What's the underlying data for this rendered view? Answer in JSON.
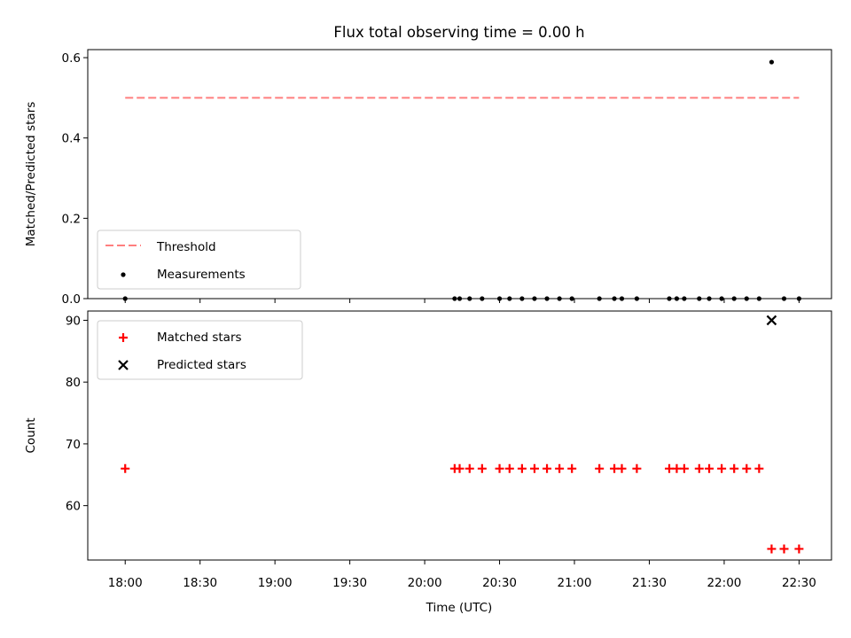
{
  "figure": {
    "title": "Flux total observing time = 0.00 h",
    "xlabel": "Time (UTC)"
  },
  "chart_data": [
    {
      "type": "scatter",
      "title": "Flux total observing time = 0.00 h",
      "xlabel": "",
      "ylabel": "Matched/Predicted stars",
      "xlim": [
        "17:45",
        "22:43"
      ],
      "ylim": [
        0.0,
        0.62
      ],
      "yticks": [
        0.0,
        0.2,
        0.4,
        0.6
      ],
      "grid": false,
      "legend_position": "lower-left",
      "threshold": {
        "name": "Threshold",
        "value": 0.5,
        "x_start": "18:00",
        "x_end": "22:30",
        "color": "#ff7f7f",
        "style": "dashed"
      },
      "series": [
        {
          "name": "Measurements",
          "color": "#000000",
          "marker": "dot",
          "points": [
            [
              "18:00",
              0.0
            ],
            [
              "20:12",
              0.0
            ],
            [
              "20:14",
              0.0
            ],
            [
              "20:18",
              0.0
            ],
            [
              "20:23",
              0.0
            ],
            [
              "20:30",
              0.0
            ],
            [
              "20:34",
              0.0
            ],
            [
              "20:39",
              0.0
            ],
            [
              "20:44",
              0.0
            ],
            [
              "20:49",
              0.0
            ],
            [
              "20:54",
              0.0
            ],
            [
              "20:59",
              0.0
            ],
            [
              "21:10",
              0.0
            ],
            [
              "21:16",
              0.0
            ],
            [
              "21:19",
              0.0
            ],
            [
              "21:25",
              0.0
            ],
            [
              "21:38",
              0.0
            ],
            [
              "21:41",
              0.0
            ],
            [
              "21:44",
              0.0
            ],
            [
              "21:50",
              0.0
            ],
            [
              "21:54",
              0.0
            ],
            [
              "21:59",
              0.0
            ],
            [
              "22:04",
              0.0
            ],
            [
              "22:09",
              0.0
            ],
            [
              "22:14",
              0.0
            ],
            [
              "22:19",
              0.589
            ],
            [
              "22:24",
              0.0
            ],
            [
              "22:30",
              0.0
            ]
          ]
        }
      ]
    },
    {
      "type": "scatter",
      "xlabel": "Time (UTC)",
      "ylabel": "Count",
      "xlim": [
        "17:45",
        "22:43"
      ],
      "ylim": [
        51.2,
        91.5
      ],
      "yticks": [
        60,
        70,
        80,
        90
      ],
      "xticks": [
        "18:00",
        "18:30",
        "19:00",
        "19:30",
        "20:00",
        "20:30",
        "21:00",
        "21:30",
        "22:00",
        "22:30"
      ],
      "grid": false,
      "legend_position": "upper-left",
      "series": [
        {
          "name": "Matched stars",
          "color": "#ff0000",
          "marker": "plus",
          "points": [
            [
              "18:00",
              66
            ],
            [
              "20:12",
              66
            ],
            [
              "20:14",
              66
            ],
            [
              "20:18",
              66
            ],
            [
              "20:23",
              66
            ],
            [
              "20:30",
              66
            ],
            [
              "20:34",
              66
            ],
            [
              "20:39",
              66
            ],
            [
              "20:44",
              66
            ],
            [
              "20:49",
              66
            ],
            [
              "20:54",
              66
            ],
            [
              "20:59",
              66
            ],
            [
              "21:10",
              66
            ],
            [
              "21:16",
              66
            ],
            [
              "21:19",
              66
            ],
            [
              "21:25",
              66
            ],
            [
              "21:38",
              66
            ],
            [
              "21:41",
              66
            ],
            [
              "21:44",
              66
            ],
            [
              "21:50",
              66
            ],
            [
              "21:54",
              66
            ],
            [
              "21:59",
              66
            ],
            [
              "22:04",
              66
            ],
            [
              "22:09",
              66
            ],
            [
              "22:14",
              66
            ],
            [
              "22:19",
              53
            ],
            [
              "22:24",
              53
            ],
            [
              "22:30",
              53
            ]
          ]
        },
        {
          "name": "Predicted stars",
          "color": "#000000",
          "marker": "x",
          "points": [
            [
              "22:19",
              90
            ]
          ]
        }
      ]
    }
  ]
}
